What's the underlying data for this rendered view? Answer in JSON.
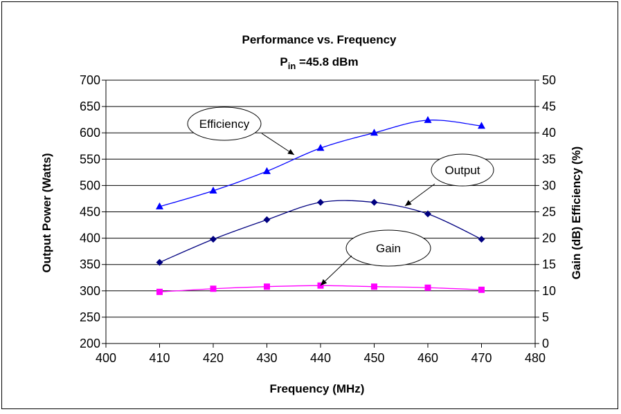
{
  "chart_data": {
    "type": "line",
    "title": "Performance vs. Frequency",
    "subtitle": {
      "prefix": "P",
      "sub": "in",
      "suffix": " =45.8 dBm"
    },
    "xlabel": "Frequency (MHz)",
    "ylabel_left": "Output Power (Watts)",
    "ylabel_right": "Gain (dB) Efficiency (%)",
    "xlim": [
      400,
      480
    ],
    "xticks": [
      400,
      410,
      420,
      430,
      440,
      450,
      460,
      470,
      480
    ],
    "ylim_left": [
      200,
      700
    ],
    "yticks_left": [
      200,
      250,
      300,
      350,
      400,
      450,
      500,
      550,
      600,
      650,
      700
    ],
    "ylim_right": [
      0,
      50
    ],
    "yticks_right": [
      0,
      5,
      10,
      15,
      20,
      25,
      30,
      35,
      40,
      45,
      50
    ],
    "grid": "horizontal",
    "x": [
      410,
      420,
      430,
      440,
      450,
      460,
      470
    ],
    "series": [
      {
        "name": "Efficiency",
        "axis": "right",
        "color": "#0000ff",
        "marker": "triangle",
        "values": [
          26,
          29,
          32.7,
          37.1,
          40,
          42.4,
          41.3
        ]
      },
      {
        "name": "Output",
        "axis": "left",
        "color": "#000080",
        "marker": "diamond",
        "values": [
          354,
          398,
          435,
          468,
          468,
          446,
          398
        ]
      },
      {
        "name": "Gain",
        "axis": "right",
        "color": "#ff00ff",
        "marker": "square",
        "values": [
          9.8,
          10.4,
          10.8,
          11,
          10.8,
          10.6,
          10.2
        ]
      }
    ],
    "annotations": [
      "Efficiency",
      "Output",
      "Gain"
    ]
  }
}
